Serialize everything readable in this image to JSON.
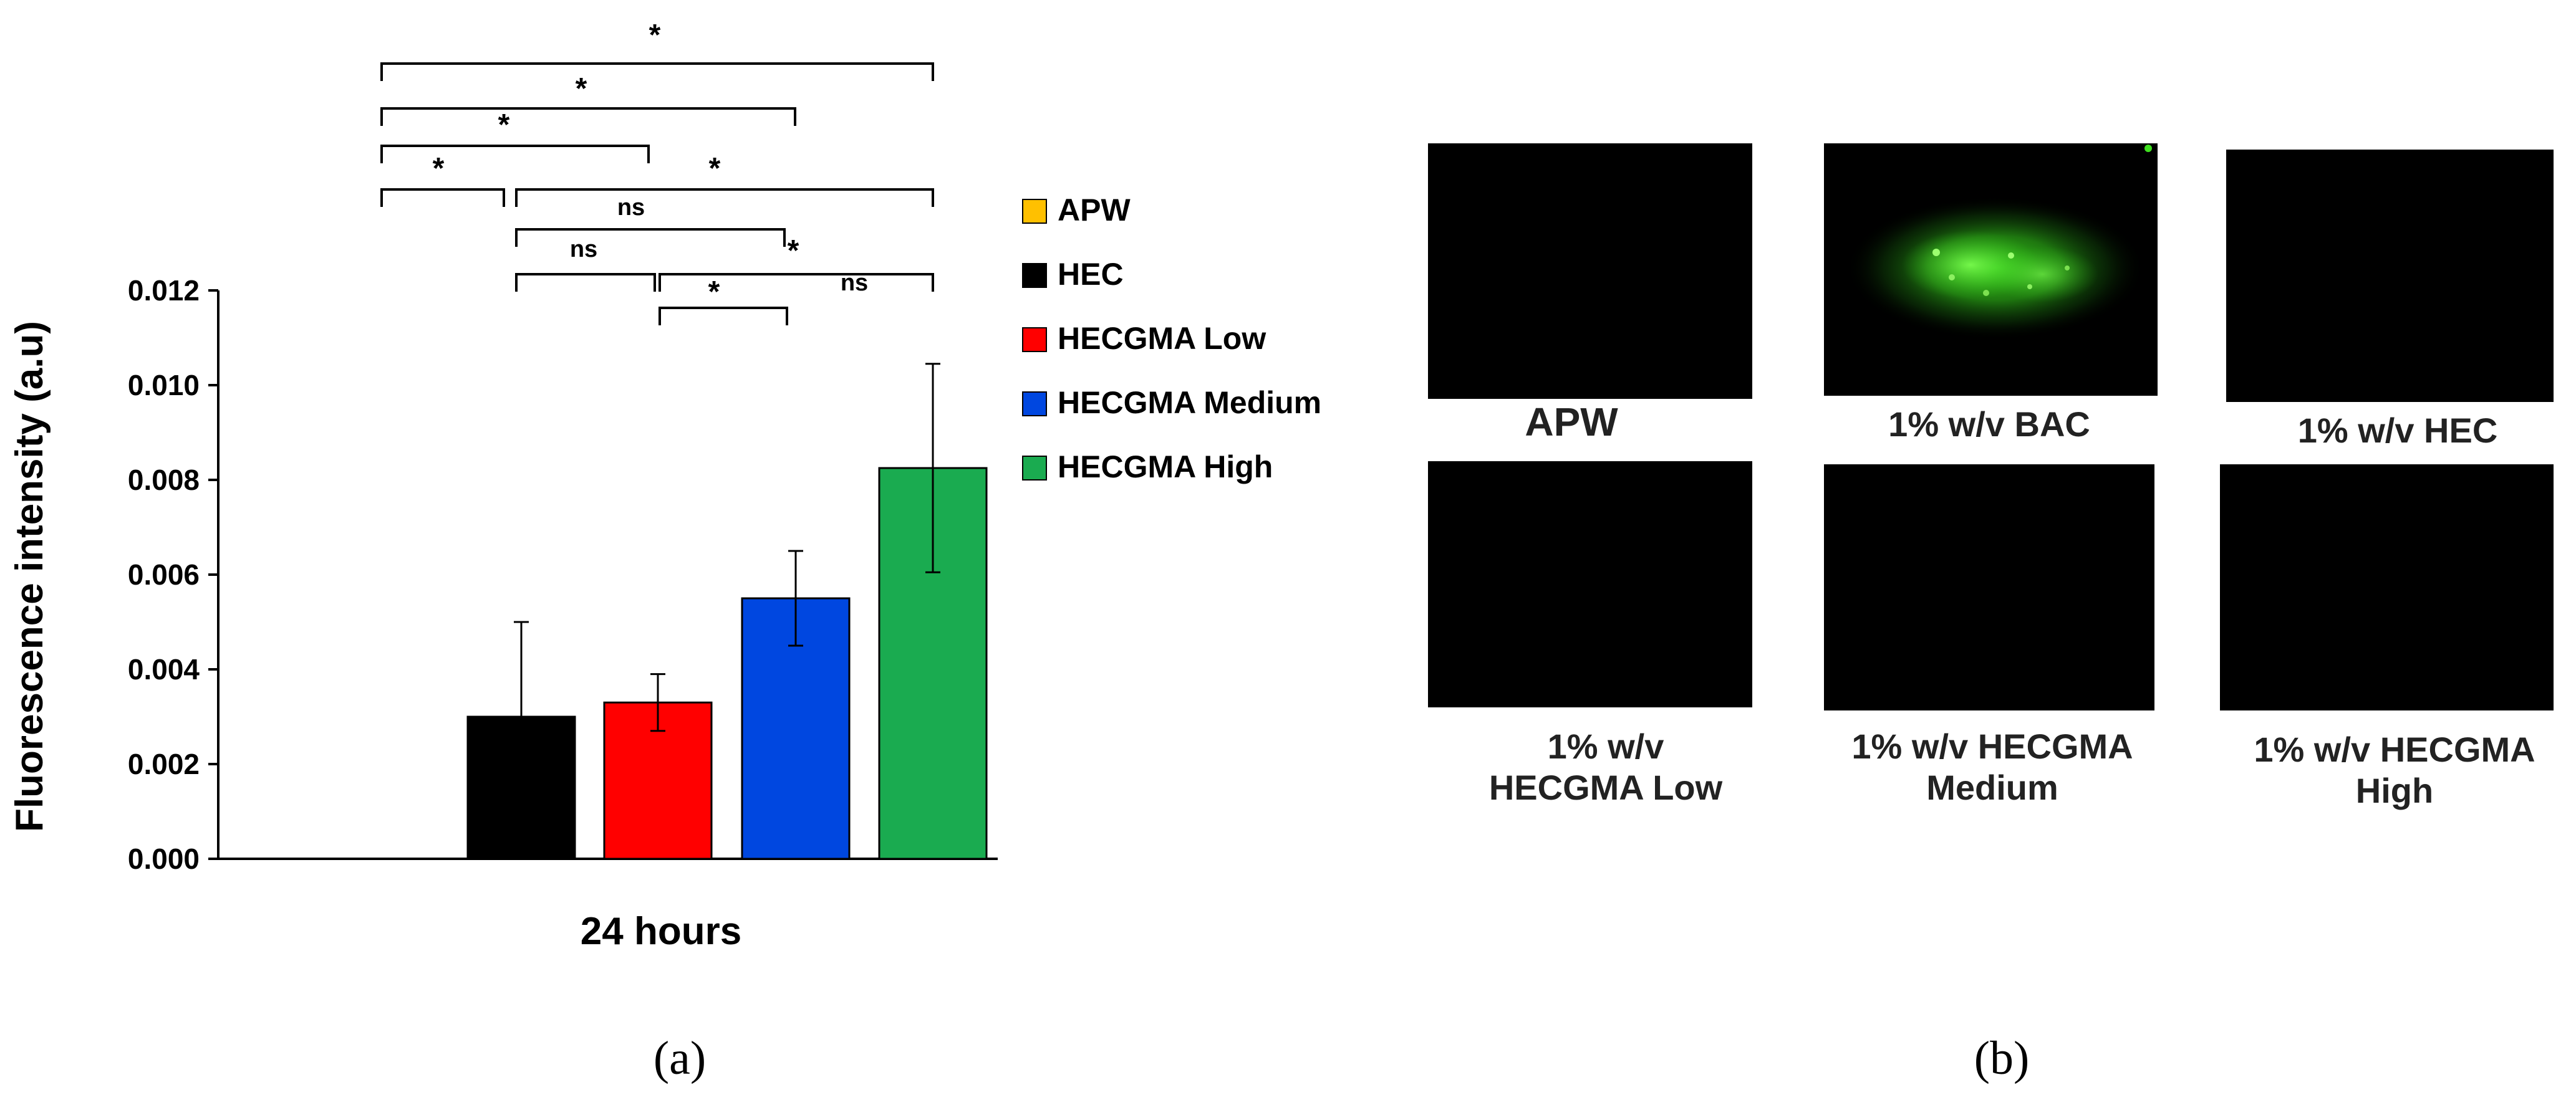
{
  "chart_data": {
    "type": "bar",
    "ylabel": "Fluorescence intensity (a.u)",
    "xlabel": "24 hours",
    "ylim": [
      0,
      0.012
    ],
    "yticks": [
      "0.000",
      "0.002",
      "0.004",
      "0.006",
      "0.008",
      "0.010",
      "0.012"
    ],
    "series": [
      {
        "name": "APW",
        "color": "#FFC000",
        "value": 0,
        "error": 0
      },
      {
        "name": "HEC",
        "color": "#000000",
        "value": 0.003,
        "error": 0.002
      },
      {
        "name": "HECGMA Low",
        "color": "#FF0000",
        "value": 0.0033,
        "error": 0.0006
      },
      {
        "name": "HECGMA Medium",
        "color": "#0047E0",
        "value": 0.0055,
        "error": 0.001
      },
      {
        "name": "HECGMA High",
        "color": "#1AAB50",
        "value": 0.00825,
        "error": 0.0022
      }
    ],
    "significance": [
      {
        "from": "APW",
        "to": "HECGMA High",
        "label": "*"
      },
      {
        "from": "APW",
        "to": "HECGMA Medium",
        "label": "*"
      },
      {
        "from": "APW",
        "to": "HECGMA Low",
        "label": "*"
      },
      {
        "from": "APW",
        "to": "HEC",
        "label": "*"
      },
      {
        "from": "HEC",
        "to": "HECGMA High",
        "label": "*"
      },
      {
        "from": "HEC",
        "to": "HECGMA Medium",
        "label": "ns"
      },
      {
        "from": "HEC",
        "to": "HECGMA Low",
        "label": "ns"
      },
      {
        "from": "HECGMA Medium",
        "to": "HECGMA High",
        "label": "*"
      },
      {
        "from": "HECGMA Low",
        "to": "HECGMA High",
        "label": "ns"
      },
      {
        "from": "HECGMA Low",
        "to": "HECGMA Medium",
        "label": "*"
      }
    ]
  },
  "panel_labels": {
    "a": "(a)",
    "b": "(b)"
  },
  "micrographs": [
    {
      "caption": "APW",
      "fluorescent": false
    },
    {
      "caption": "1% w/v BAC",
      "fluorescent": true,
      "glow_color": "#3FE020"
    },
    {
      "caption": "1% w/v HEC",
      "fluorescent": false
    },
    {
      "caption": "1% w/v\nHECGMA Low",
      "fluorescent": false
    },
    {
      "caption": "1% w/v HECGMA\nMedium",
      "fluorescent": false
    },
    {
      "caption": "1% w/v HECGMA\nHigh",
      "fluorescent": false
    }
  ]
}
